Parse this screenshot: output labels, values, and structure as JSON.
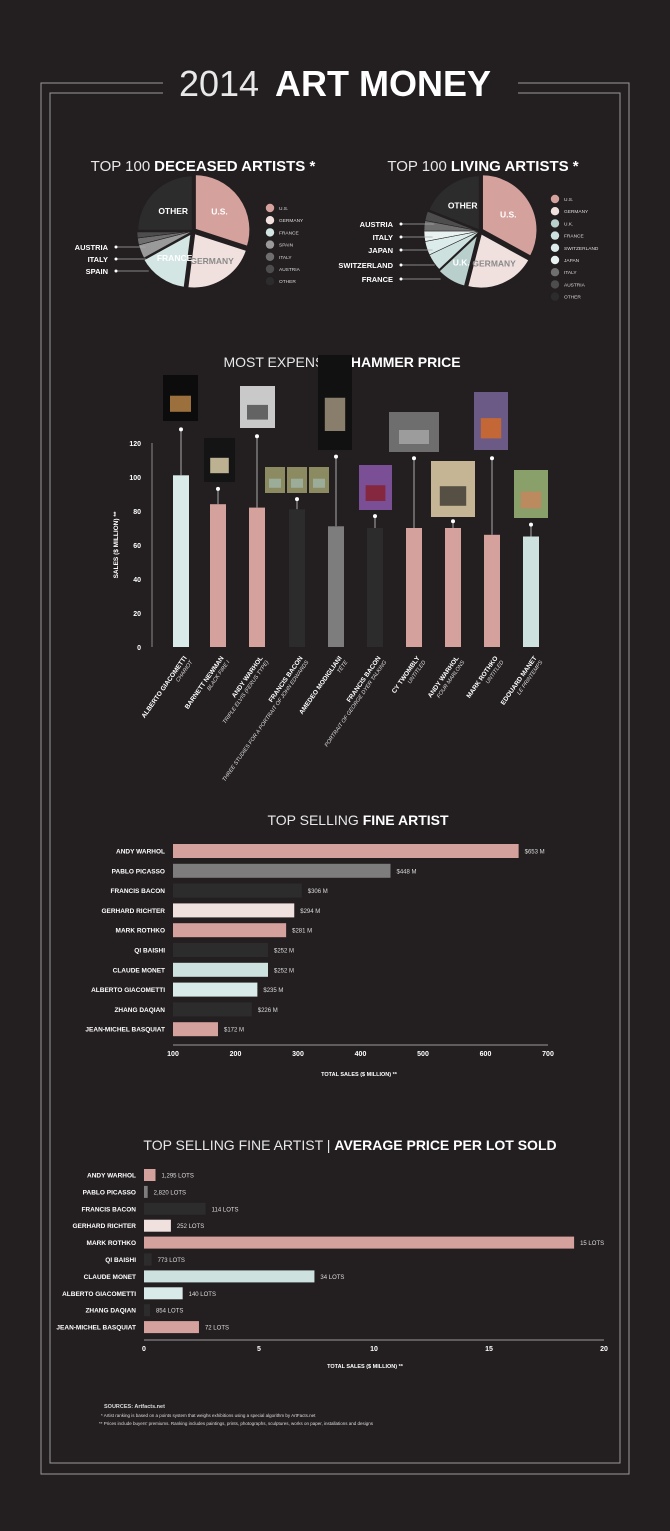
{
  "header": {
    "title_light": "2014",
    "title_bold": "ART MONEY"
  },
  "colors": {
    "background": "#231f20",
    "pink": "#d4a19d",
    "light_pink": "#f0e1df",
    "light_cyan": "#d3e6e3",
    "gray": "#7d7d7d",
    "dark": "#2c2c2c"
  },
  "chart_data": [
    {
      "type": "pie",
      "title_light": "TOP 100",
      "title_bold": "DECEASED ARTISTS *",
      "slices": [
        {
          "label": "U.S.",
          "legend": "U.S.",
          "value": 30,
          "color": "#d4a19d",
          "inside": true
        },
        {
          "label": "GERMANY",
          "legend": "GERMANY",
          "value": 22,
          "color": "#f0e1df",
          "inside": true
        },
        {
          "label": "FRANCE",
          "legend": "FRANCE",
          "value": 15,
          "color": "#d3e6e3",
          "inside": true
        },
        {
          "label": "SPAIN",
          "legend": "SPAIN",
          "value": 4,
          "color": "#9a9a9a",
          "inside": false
        },
        {
          "label": "ITALY",
          "legend": "ITALY",
          "value": 2,
          "color": "#6f6f6f",
          "inside": false
        },
        {
          "label": "AUSTRIA",
          "legend": "AUSTRIA",
          "value": 2,
          "color": "#4d4d4d",
          "inside": false
        },
        {
          "label": "OTHER",
          "legend": "OTHER",
          "value": 25,
          "color": "#2c2c2c",
          "inside": true
        }
      ],
      "legend_position": "right"
    },
    {
      "type": "pie",
      "title_light": "TOP 100",
      "title_bold": "LIVING ARTISTS *",
      "slices": [
        {
          "label": "U.S.",
          "legend": "U.S.",
          "value": 33,
          "color": "#d4a19d",
          "inside": true
        },
        {
          "label": "GERMANY",
          "legend": "GERMANY",
          "value": 21,
          "color": "#f0e1df",
          "inside": true
        },
        {
          "label": "U.K.",
          "legend": "U.K.",
          "value": 9,
          "color": "#b8cfcc",
          "inside": true
        },
        {
          "label": "FRANCE",
          "legend": "FRANCE",
          "value": 5,
          "color": "#cde2df",
          "inside": false
        },
        {
          "label": "SWITZERLAND",
          "legend": "SWITZERLAND",
          "value": 4,
          "color": "#dcecea",
          "inside": false
        },
        {
          "label": "JAPAN",
          "legend": "JAPAN",
          "value": 3,
          "color": "#e8f2f1",
          "inside": false
        },
        {
          "label": "ITALY",
          "legend": "ITALY",
          "value": 3,
          "color": "#6f6f6f",
          "inside": false
        },
        {
          "label": "AUSTRIA",
          "legend": "AUSTRIA",
          "value": 3,
          "color": "#4d4d4d",
          "inside": false
        },
        {
          "label": "OTHER",
          "legend": "OTHER",
          "value": 19,
          "color": "#2c2c2c",
          "inside": true
        }
      ],
      "legend_position": "right"
    },
    {
      "type": "bar",
      "title_light": "MOST EXPENSIVE",
      "title_bold": "HAMMER PRICE",
      "ylabel": "SALES ($ MILLION) **",
      "ylim": [
        0,
        120
      ],
      "yticks": [
        "0",
        "20",
        "40",
        "60",
        "80",
        "100",
        "120"
      ],
      "grid": false,
      "bars": [
        {
          "artist": "ALBERTO GIACOMETTI",
          "work": "CHARIOT",
          "value": 101,
          "color": "#d9ebe8"
        },
        {
          "artist": "BARNETT NEWMAN",
          "work": "BLACK FIRE I",
          "value": 84,
          "color": "#d4a19d"
        },
        {
          "artist": "ANDY WARHOL",
          "work": "TRIPLE ELVIS (FERUS TYPE)",
          "value": 82,
          "color": "#d4a19d"
        },
        {
          "artist": "FRANCIS BACON",
          "work": "THREE STUDIES FOR A PORTRAIT OF JOHN EDWARDS",
          "value": 81,
          "color": "#2c2c2c"
        },
        {
          "artist": "AMEDEO MODIGLIANI",
          "work": "TÊTE",
          "value": 71,
          "color": "#7d7d7d"
        },
        {
          "artist": "FRANCIS BACON",
          "work": "PORTRAIT OF GEORGE DYER TALKING",
          "value": 70,
          "color": "#2c2c2c"
        },
        {
          "artist": "CY TWOMBLY",
          "work": "UNTITLED",
          "value": 70,
          "color": "#d4a19d"
        },
        {
          "artist": "ANDY WARHOL",
          "work": "FOUR MARLONS",
          "value": 70,
          "color": "#d4a19d"
        },
        {
          "artist": "MARK ROTHKO",
          "work": "UNTITLED",
          "value": 66,
          "color": "#d4a19d"
        },
        {
          "artist": "EDOUARD MANET",
          "work": "LE PRINTEMPS",
          "value": 65,
          "color": "#cde2df"
        }
      ]
    },
    {
      "type": "bar",
      "orientation": "horizontal",
      "title_light": "TOP SELLING",
      "title_bold": "FINE ARTIST",
      "xlabel": "TOTAL SALES ($ MILLION) **",
      "xlim": [
        100,
        700
      ],
      "xticks": [
        "100",
        "200",
        "300",
        "400",
        "500",
        "600",
        "700"
      ],
      "bars": [
        {
          "artist": "ANDY WARHOL",
          "value": 653,
          "label": "$653 M",
          "color": "#d4a19d"
        },
        {
          "artist": "PABLO PICASSO",
          "value": 448,
          "label": "$448 M",
          "color": "#7d7d7d"
        },
        {
          "artist": "FRANCIS BACON",
          "value": 306,
          "label": "$306 M",
          "color": "#2c2c2c"
        },
        {
          "artist": "GERHARD RICHTER",
          "value": 294,
          "label": "$294 M",
          "color": "#f0e1df"
        },
        {
          "artist": "MARK ROTHKO",
          "value": 281,
          "label": "$281 M",
          "color": "#d4a19d"
        },
        {
          "artist": "QI BAISHI",
          "value": 252,
          "label": "$252 M",
          "color": "#2c2c2c"
        },
        {
          "artist": "CLAUDE MONET",
          "value": 252,
          "label": "$252 M",
          "color": "#cde2df"
        },
        {
          "artist": "ALBERTO GIACOMETTI",
          "value": 235,
          "label": "$235 M",
          "color": "#d9ebe8"
        },
        {
          "artist": "ZHANG DAQIAN",
          "value": 226,
          "label": "$226 M",
          "color": "#2c2c2c"
        },
        {
          "artist": "JEAN-MICHEL BASQUIAT",
          "value": 172,
          "label": "$172 M",
          "color": "#d4a19d"
        }
      ]
    },
    {
      "type": "bar",
      "orientation": "horizontal",
      "title_light": "TOP SELLING FINE ARTIST |",
      "title_bold": "AVERAGE PRICE PER LOT SOLD",
      "xlabel": "TOTAL SALES ($ MILLION) **",
      "xlim": [
        0,
        20
      ],
      "xticks": [
        "0",
        "5",
        "10",
        "15",
        "20"
      ],
      "bars": [
        {
          "artist": "ANDY WARHOL",
          "value": 0.5,
          "label": "1,295 LOTS",
          "color": "#d4a19d"
        },
        {
          "artist": "PABLO PICASSO",
          "value": 0.16,
          "label": "2,820 LOTS",
          "color": "#7d7d7d"
        },
        {
          "artist": "FRANCIS BACON",
          "value": 2.68,
          "label": "114 LOTS",
          "color": "#2c2c2c"
        },
        {
          "artist": "GERHARD RICHTER",
          "value": 1.17,
          "label": "252 LOTS",
          "color": "#f0e1df"
        },
        {
          "artist": "MARK ROTHKO",
          "value": 18.7,
          "label": "15 LOTS",
          "color": "#d4a19d"
        },
        {
          "artist": "QI BAISHI",
          "value": 0.33,
          "label": "773 LOTS",
          "color": "#2c2c2c"
        },
        {
          "artist": "CLAUDE MONET",
          "value": 7.41,
          "label": "34 LOTS",
          "color": "#cde2df"
        },
        {
          "artist": "ALBERTO GIACOMETTI",
          "value": 1.68,
          "label": "140 LOTS",
          "color": "#d9ebe8"
        },
        {
          "artist": "ZHANG DAQIAN",
          "value": 0.26,
          "label": "854 LOTS",
          "color": "#2c2c2c"
        },
        {
          "artist": "JEAN-MICHEL BASQUIAT",
          "value": 2.39,
          "label": "72 LOTS",
          "color": "#d4a19d"
        }
      ]
    }
  ],
  "footer": {
    "sources": "SOURCES: Artfacts.net",
    "note1": "* Artist ranking is based on a points system that weighs exhibitions using a special algorithm by ArtFacts.net",
    "note2": "** Prices include buyers' premiums. Ranking includes paintings, prints, photographs, sculptures, works on paper, installations and designs"
  }
}
